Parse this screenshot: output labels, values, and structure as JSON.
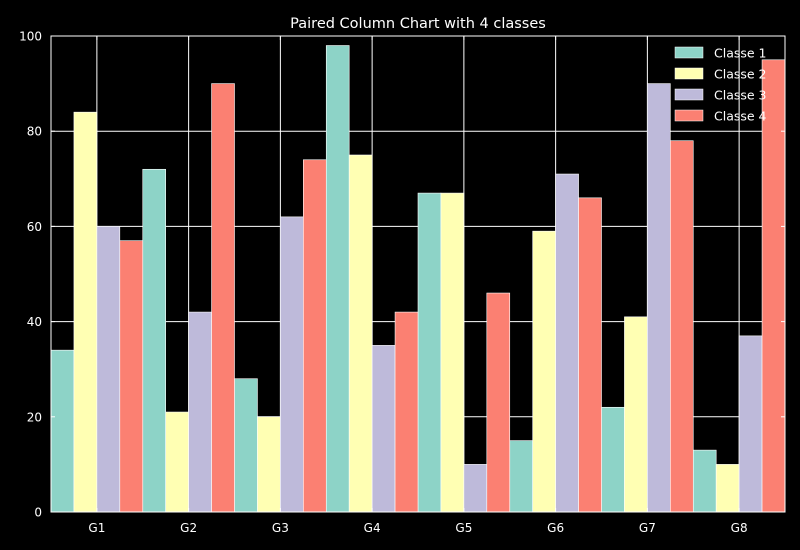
{
  "chart_data": {
    "type": "bar",
    "title": "Paired Column Chart with 4 classes",
    "xlabel": "",
    "ylabel": "",
    "ylim": [
      0,
      100
    ],
    "yticks": [
      0,
      20,
      40,
      60,
      80,
      100
    ],
    "categories": [
      "G1",
      "G2",
      "G3",
      "G4",
      "G5",
      "G6",
      "G7",
      "G8"
    ],
    "grid": true,
    "legend_position": "top-right",
    "series": [
      {
        "name": "Classe 1",
        "color": "#8dd3c7",
        "values": [
          34,
          72,
          28,
          98,
          67,
          15,
          22,
          13
        ]
      },
      {
        "name": "Classe 2",
        "color": "#ffffb3",
        "values": [
          84,
          21,
          20,
          75,
          67,
          59,
          41,
          10
        ]
      },
      {
        "name": "Classe 3",
        "color": "#bebada",
        "values": [
          60,
          42,
          62,
          35,
          10,
          71,
          90,
          37
        ]
      },
      {
        "name": "Classe 4",
        "color": "#fb8072",
        "values": [
          57,
          90,
          74,
          42,
          46,
          66,
          78,
          95
        ]
      }
    ]
  }
}
